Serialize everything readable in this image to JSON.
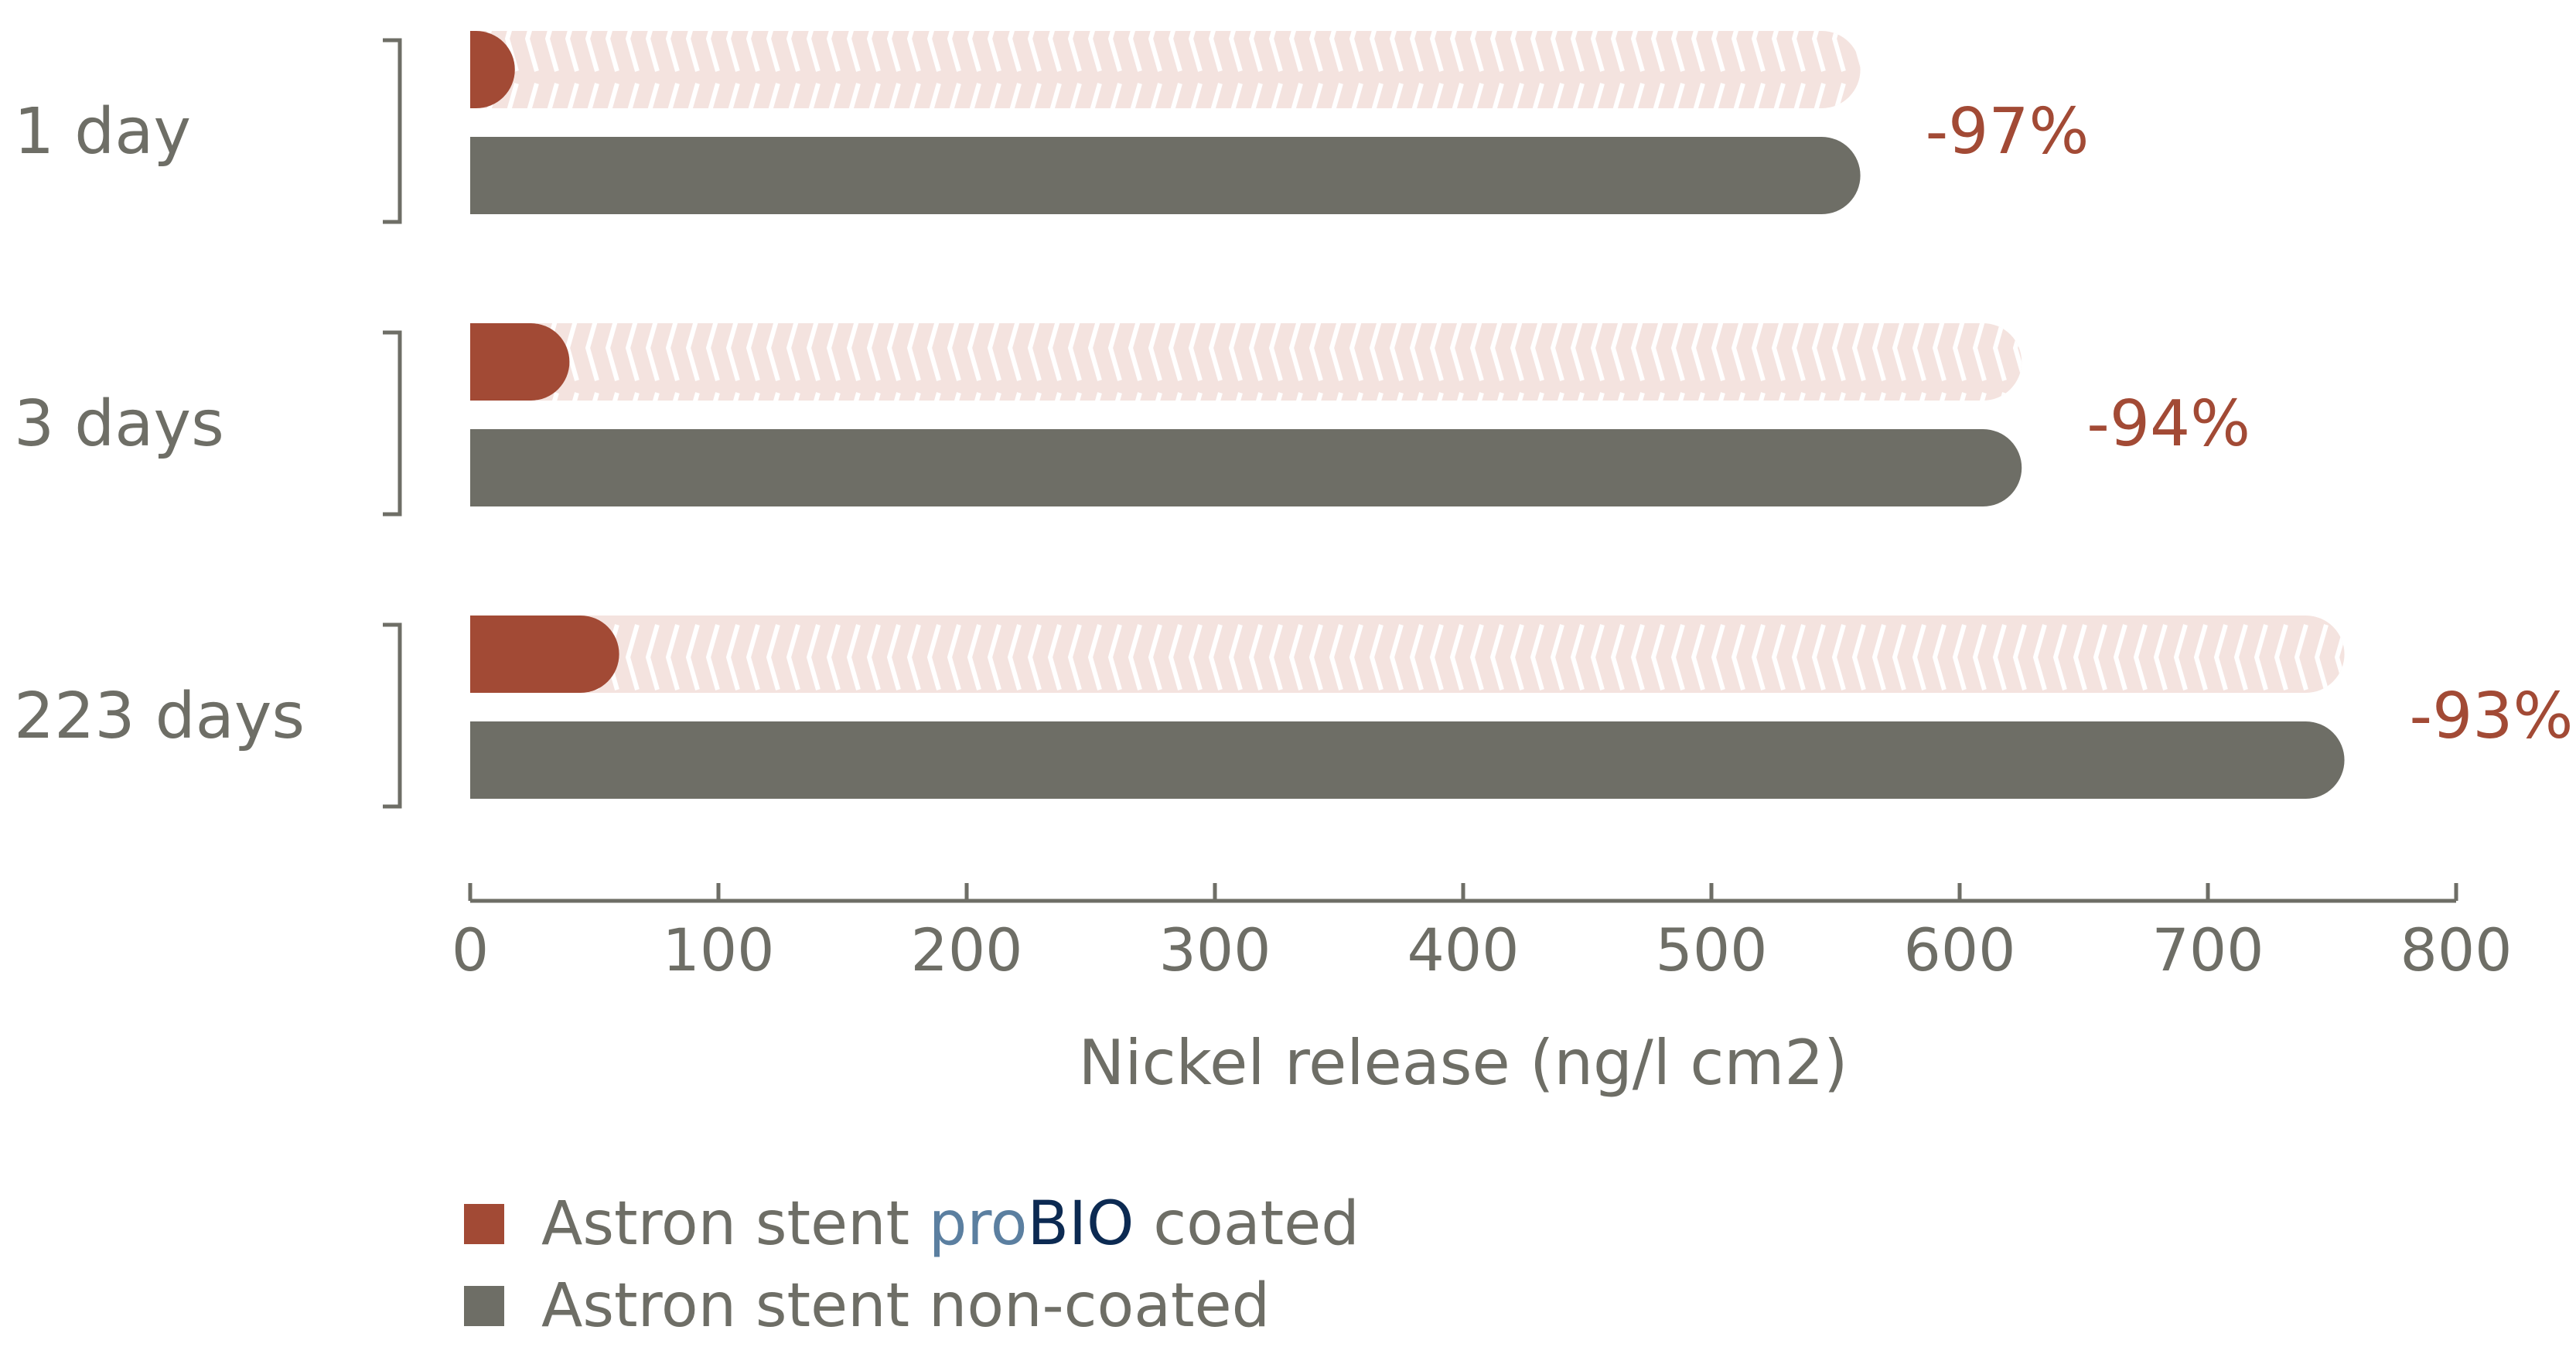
{
  "colors": {
    "coated": "#a24a35",
    "noncoated": "#6e6e66",
    "chevron_bg": "#f4e3df",
    "text": "#6e6e66",
    "reduction": "#a24a35",
    "brand_pro": "#5b7fa0",
    "brand_bio": "#0c2a52"
  },
  "chart_data": {
    "type": "bar",
    "orientation": "horizontal",
    "categories": [
      "1 day",
      "3 days",
      "223 days"
    ],
    "series": [
      {
        "name": "Astron stent proBIO coated",
        "values": [
          18,
          40,
          60
        ]
      },
      {
        "name": "Astron stent non-coated",
        "values": [
          560,
          625,
          755
        ]
      }
    ],
    "reductions": [
      "-97%",
      "-94%",
      "-93%"
    ],
    "xlabel": "Nickel release (ng/l cm2)",
    "xlim": [
      0,
      800
    ],
    "xticks": [
      0,
      100,
      200,
      300,
      400,
      500,
      600,
      700,
      800
    ],
    "grid": false,
    "legend_position": "bottom-left"
  },
  "legend": {
    "coated": {
      "prefix": "Astron stent ",
      "brand_pro": "pro",
      "brand_bio": "BIO",
      "suffix": " coated"
    },
    "noncoated": {
      "label": "Astron stent non-coated"
    }
  }
}
